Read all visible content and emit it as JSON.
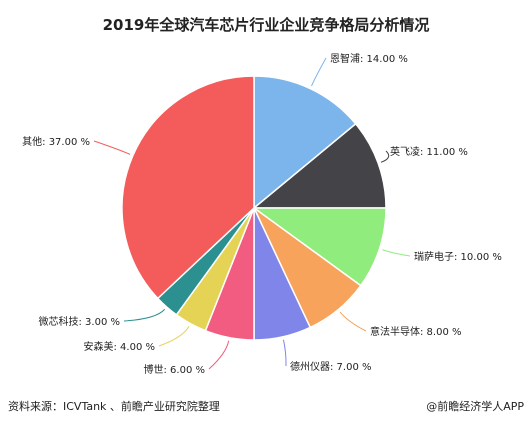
{
  "chart_data": {
    "type": "pie",
    "title": "2019年全球汽车芯片行业企业竞争格局分析情况",
    "categories": [
      "恩智浦",
      "英飞凌",
      "瑞萨电子",
      "意法半导体",
      "德州仪器",
      "博世",
      "安森美",
      "微芯科技",
      "其他"
    ],
    "values": [
      14.0,
      11.0,
      10.0,
      8.0,
      7.0,
      6.0,
      4.0,
      3.0,
      37.0
    ],
    "value_labels": [
      "14.00 %",
      "11.00 %",
      "10.00 %",
      "8.00 %",
      "7.00 %",
      "6.00 %",
      "4.00 %",
      "3.00 %",
      "37.00 %"
    ],
    "colors": [
      "#7cb5ec",
      "#434348",
      "#90ed7d",
      "#f7a35c",
      "#8085e9",
      "#f15c80",
      "#e4d354",
      "#2b908f",
      "#f45b5b"
    ],
    "start": "12 o'clock",
    "direction": "clockwise",
    "legend": "none"
  },
  "footer": {
    "source": "资料来源：ICVTank 、前瞻产业研究院整理",
    "brand": "@前瞻经济学人APP"
  }
}
